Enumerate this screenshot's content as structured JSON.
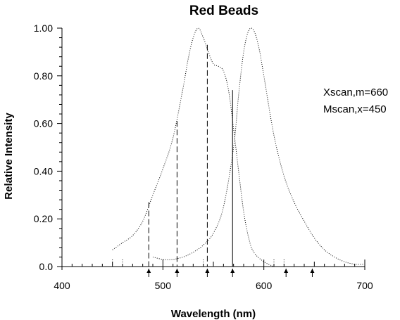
{
  "chart_data": {
    "type": "line",
    "title": "Red Beads",
    "xlabel": "Wavelength (nm)",
    "ylabel": "Relative Intensity",
    "xlim": [
      400,
      700
    ],
    "ylim": [
      0,
      1.0
    ],
    "x_ticks": [
      "400",
      "500",
      "600",
      "700"
    ],
    "y_ticks": [
      "0.0",
      "0.20",
      "0.40",
      "0.60",
      "0.80",
      "1.00"
    ],
    "annotations": [
      "Xscan,m=660",
      "Mscan,x=450"
    ],
    "series": [
      {
        "style": "dotted",
        "x": [
          450,
          460,
          470,
          480,
          490,
          500,
          510,
          520,
          525,
          530,
          535,
          540,
          545,
          550,
          555,
          560,
          565,
          570,
          575,
          580,
          585,
          590,
          600,
          610
        ],
        "y": [
          0.07,
          0.1,
          0.13,
          0.19,
          0.3,
          0.41,
          0.54,
          0.75,
          0.87,
          0.96,
          1.0,
          0.96,
          0.9,
          0.85,
          0.84,
          0.82,
          0.74,
          0.58,
          0.4,
          0.23,
          0.12,
          0.06,
          0.02,
          0.0
        ]
      },
      {
        "style": "dotted",
        "x": [
          490,
          500,
          510,
          520,
          530,
          540,
          550,
          560,
          570,
          575,
          580,
          585,
          590,
          595,
          600,
          610,
          620,
          630,
          640,
          650,
          660,
          670,
          680,
          690,
          700
        ],
        "y": [
          0.04,
          0.03,
          0.03,
          0.04,
          0.06,
          0.09,
          0.14,
          0.25,
          0.5,
          0.72,
          0.9,
          0.99,
          0.99,
          0.92,
          0.8,
          0.55,
          0.38,
          0.27,
          0.19,
          0.12,
          0.07,
          0.04,
          0.02,
          0.01,
          0.01
        ]
      }
    ],
    "drop_lines": [
      {
        "x": 486,
        "y": 0.27,
        "style": "dashed"
      },
      {
        "x": 514,
        "y": 0.61,
        "style": "dashed"
      },
      {
        "x": 544,
        "y": 0.93,
        "style": "dashed"
      },
      {
        "x": 569,
        "y": 0.74,
        "style": "solid"
      }
    ],
    "arrows_x": [
      486,
      514,
      544,
      569,
      622,
      648
    ],
    "grid": false
  }
}
